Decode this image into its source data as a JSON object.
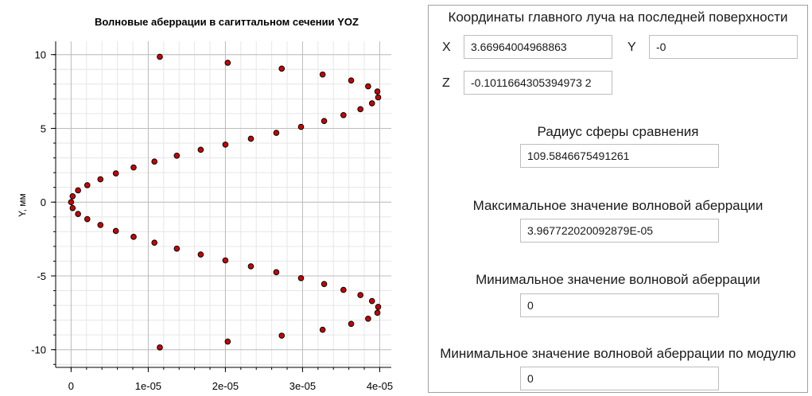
{
  "chart": {
    "title": "Волновые аберрации в сагиттальном сечении YOZ",
    "ylabel": "Y, мм"
  },
  "chart_data": {
    "type": "scatter",
    "title": "Волновые аберрации в сагиттальном сечении YOZ",
    "xlabel": "",
    "ylabel": "Y, мм",
    "xlim": [
      -2e-06,
      4.15e-05
    ],
    "ylim": [
      -11.2,
      10.9
    ],
    "x_ticks": [
      0,
      1e-05,
      2e-05,
      3e-05,
      4e-05
    ],
    "x_tick_labels": [
      "0",
      "1e-05",
      "2e-05",
      "3e-05",
      "4e-05"
    ],
    "y_ticks": [
      10,
      5,
      0,
      -5,
      -10
    ],
    "y_tick_labels": [
      "10",
      "5",
      "0",
      "-5",
      "-10"
    ],
    "grid": true,
    "marker_color": "#cc0000",
    "points": [
      {
        "x": 1.15e-05,
        "y": 9.85
      },
      {
        "x": 2.03e-05,
        "y": 9.45
      },
      {
        "x": 2.73e-05,
        "y": 9.05
      },
      {
        "x": 3.26e-05,
        "y": 8.65
      },
      {
        "x": 3.63e-05,
        "y": 8.25
      },
      {
        "x": 3.85e-05,
        "y": 7.85
      },
      {
        "x": 3.97e-05,
        "y": 7.5
      },
      {
        "x": 3.98e-05,
        "y": 7.1
      },
      {
        "x": 3.9e-05,
        "y": 6.7
      },
      {
        "x": 3.75e-05,
        "y": 6.3
      },
      {
        "x": 3.53e-05,
        "y": 5.9
      },
      {
        "x": 3.28e-05,
        "y": 5.5
      },
      {
        "x": 2.98e-05,
        "y": 5.1
      },
      {
        "x": 2.66e-05,
        "y": 4.7
      },
      {
        "x": 2.33e-05,
        "y": 4.3
      },
      {
        "x": 2e-05,
        "y": 3.9
      },
      {
        "x": 1.68e-05,
        "y": 3.55
      },
      {
        "x": 1.37e-05,
        "y": 3.15
      },
      {
        "x": 1.08e-05,
        "y": 2.75
      },
      {
        "x": 8.1e-06,
        "y": 2.35
      },
      {
        "x": 5.8e-06,
        "y": 1.95
      },
      {
        "x": 3.8e-06,
        "y": 1.55
      },
      {
        "x": 2.1e-06,
        "y": 1.15
      },
      {
        "x": 9e-07,
        "y": 0.8
      },
      {
        "x": 2e-07,
        "y": 0.4
      },
      {
        "x": 0.0,
        "y": 0.0
      },
      {
        "x": 2e-07,
        "y": -0.4
      },
      {
        "x": 9e-07,
        "y": -0.8
      },
      {
        "x": 2.1e-06,
        "y": -1.15
      },
      {
        "x": 3.8e-06,
        "y": -1.55
      },
      {
        "x": 5.8e-06,
        "y": -1.95
      },
      {
        "x": 8.1e-06,
        "y": -2.35
      },
      {
        "x": 1.08e-05,
        "y": -2.75
      },
      {
        "x": 1.37e-05,
        "y": -3.15
      },
      {
        "x": 1.68e-05,
        "y": -3.55
      },
      {
        "x": 2e-05,
        "y": -3.95
      },
      {
        "x": 2.33e-05,
        "y": -4.35
      },
      {
        "x": 2.66e-05,
        "y": -4.75
      },
      {
        "x": 2.98e-05,
        "y": -5.15
      },
      {
        "x": 3.28e-05,
        "y": -5.55
      },
      {
        "x": 3.53e-05,
        "y": -5.95
      },
      {
        "x": 3.75e-05,
        "y": -6.3
      },
      {
        "x": 3.9e-05,
        "y": -6.7
      },
      {
        "x": 3.98e-05,
        "y": -7.1
      },
      {
        "x": 3.97e-05,
        "y": -7.5
      },
      {
        "x": 3.85e-05,
        "y": -7.9
      },
      {
        "x": 3.63e-05,
        "y": -8.25
      },
      {
        "x": 3.26e-05,
        "y": -8.65
      },
      {
        "x": 2.73e-05,
        "y": -9.05
      },
      {
        "x": 2.03e-05,
        "y": -9.45
      },
      {
        "x": 1.15e-05,
        "y": -9.85
      }
    ]
  },
  "panel": {
    "chief_ray_heading": "Координаты главного луча на последней поверхности",
    "x_label": "X",
    "x_value": "3.66964004968863",
    "y_label": "Y",
    "y_value": "-0",
    "z_label": "Z",
    "z_value": "-0.1011664305394973 2",
    "sphere_radius_heading": "Радиус сферы сравнения",
    "sphere_radius_value": "109.5846675491261",
    "max_aberration_heading": "Максимальное значение волновой аберрации",
    "max_aberration_value": "3.967722020092879E-05",
    "min_aberration_heading": "Минимальное значение волновой аберрации",
    "min_aberration_value": "0",
    "min_abs_aberration_heading": "Минимальное значение волновой аберрации по модулю",
    "min_abs_aberration_value": "0"
  }
}
